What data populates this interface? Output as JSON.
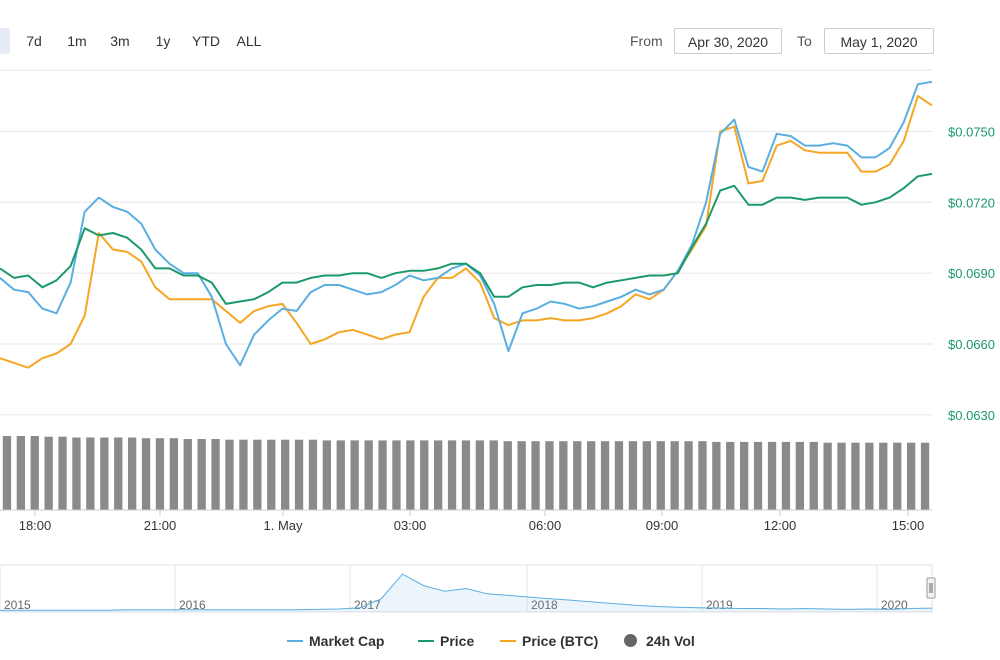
{
  "range_buttons": [
    {
      "label": ""
    },
    {
      "label": "7d"
    },
    {
      "label": "1m"
    },
    {
      "label": "3m"
    },
    {
      "label": "1y"
    },
    {
      "label": "YTD"
    },
    {
      "label": "ALL"
    }
  ],
  "date_range": {
    "from_label": "From",
    "from_value": "Apr 30, 2020",
    "to_label": "To",
    "to_value": "May 1, 2020"
  },
  "colors": {
    "market_cap": "#5aaee0",
    "price": "#1a9a68",
    "price_btc": "#f5a623",
    "volume": "#8a8a8a",
    "grid": "#e6e6e6",
    "axis_label": "#1a9a68"
  },
  "chart_data": {
    "type": "line",
    "y_axis": {
      "ticks": [
        "$0.0750",
        "$0.0720",
        "$0.0690",
        "$0.0660",
        "$0.0630"
      ],
      "range": [
        0.0627,
        0.0776
      ]
    },
    "x_axis": {
      "ticks": [
        "18:00",
        "21:00",
        "1. May",
        "03:00",
        "06:00",
        "09:00",
        "12:00",
        "15:00"
      ]
    },
    "series": [
      {
        "name": "Market Cap",
        "values": [
          0.0688,
          0.0683,
          0.0682,
          0.0675,
          0.0673,
          0.0686,
          0.0716,
          0.0722,
          0.0718,
          0.0716,
          0.0711,
          0.07,
          0.0694,
          0.069,
          0.069,
          0.068,
          0.066,
          0.0651,
          0.0664,
          0.067,
          0.0675,
          0.0674,
          0.0682,
          0.0685,
          0.0685,
          0.0683,
          0.0681,
          0.0682,
          0.0685,
          0.0689,
          0.0687,
          0.0688,
          0.0692,
          0.0694,
          0.0689,
          0.0677,
          0.0657,
          0.0673,
          0.0675,
          0.0678,
          0.0677,
          0.0675,
          0.0676,
          0.0678,
          0.068,
          0.0683,
          0.0681,
          0.0683,
          0.0691,
          0.0702,
          0.072,
          0.0749,
          0.0755,
          0.0735,
          0.0733,
          0.0749,
          0.0748,
          0.0744,
          0.0744,
          0.0745,
          0.0744,
          0.0739,
          0.0739,
          0.0743,
          0.0754,
          0.077,
          0.0771
        ]
      },
      {
        "name": "Price",
        "values": [
          0.0692,
          0.0688,
          0.0689,
          0.0684,
          0.0687,
          0.0693,
          0.0709,
          0.0706,
          0.0707,
          0.0705,
          0.07,
          0.0692,
          0.0692,
          0.0689,
          0.0689,
          0.0686,
          0.0677,
          0.0678,
          0.0679,
          0.0682,
          0.0686,
          0.0686,
          0.0688,
          0.0689,
          0.0689,
          0.069,
          0.069,
          0.0688,
          0.069,
          0.0691,
          0.0691,
          0.0692,
          0.0694,
          0.0694,
          0.069,
          0.068,
          0.068,
          0.0684,
          0.0685,
          0.0685,
          0.0686,
          0.0686,
          0.0684,
          0.0686,
          0.0687,
          0.0688,
          0.0689,
          0.0689,
          0.069,
          0.0701,
          0.0711,
          0.0725,
          0.0727,
          0.0719,
          0.0719,
          0.0722,
          0.0722,
          0.0721,
          0.0722,
          0.0722,
          0.0722,
          0.0719,
          0.072,
          0.0722,
          0.0726,
          0.0731,
          0.0732
        ]
      },
      {
        "name": "Price (BTC)",
        "values": [
          0.0654,
          0.0652,
          0.065,
          0.0654,
          0.0656,
          0.066,
          0.0672,
          0.0707,
          0.07,
          0.0699,
          0.0695,
          0.0684,
          0.0679,
          0.0679,
          0.0679,
          0.0679,
          0.0674,
          0.0669,
          0.0674,
          0.0676,
          0.0677,
          0.0669,
          0.066,
          0.0662,
          0.0665,
          0.0666,
          0.0664,
          0.0662,
          0.0664,
          0.0665,
          0.068,
          0.0688,
          0.0688,
          0.0692,
          0.0686,
          0.0671,
          0.0668,
          0.067,
          0.067,
          0.0671,
          0.067,
          0.067,
          0.0671,
          0.0673,
          0.0676,
          0.0681,
          0.0679,
          0.0683,
          0.0691,
          0.07,
          0.071,
          0.075,
          0.0752,
          0.0728,
          0.0729,
          0.0744,
          0.0746,
          0.0742,
          0.0741,
          0.0741,
          0.0741,
          0.0733,
          0.0733,
          0.0736,
          0.0746,
          0.0765,
          0.0761
        ]
      },
      {
        "name": "24h Vol",
        "values": [
          1.0,
          1.0,
          1.0,
          0.99,
          0.99,
          0.98,
          0.98,
          0.98,
          0.98,
          0.98,
          0.97,
          0.97,
          0.97,
          0.96,
          0.96,
          0.96,
          0.95,
          0.95,
          0.95,
          0.95,
          0.95,
          0.95,
          0.95,
          0.94,
          0.94,
          0.94,
          0.94,
          0.94,
          0.94,
          0.94,
          0.94,
          0.94,
          0.94,
          0.94,
          0.94,
          0.94,
          0.93,
          0.93,
          0.93,
          0.93,
          0.93,
          0.93,
          0.93,
          0.93,
          0.93,
          0.93,
          0.93,
          0.93,
          0.93,
          0.93,
          0.93,
          0.92,
          0.92,
          0.92,
          0.92,
          0.92,
          0.92,
          0.92,
          0.92,
          0.91,
          0.91,
          0.91,
          0.91,
          0.91,
          0.91,
          0.91,
          0.91
        ]
      }
    ],
    "navigator": {
      "ticks": [
        "2015",
        "2016",
        "2017",
        "2018",
        "2019",
        "2020"
      ],
      "values": [
        0.02,
        0.02,
        0.02,
        0.02,
        0.02,
        0.02,
        0.03,
        0.03,
        0.03,
        0.03,
        0.03,
        0.03,
        0.03,
        0.03,
        0.03,
        0.04,
        0.05,
        0.08,
        0.3,
        0.9,
        0.62,
        0.48,
        0.55,
        0.42,
        0.38,
        0.34,
        0.3,
        0.26,
        0.22,
        0.18,
        0.14,
        0.11,
        0.09,
        0.08,
        0.07,
        0.06,
        0.06,
        0.05,
        0.06,
        0.05,
        0.04,
        0.05,
        0.04,
        0.06,
        0.07
      ]
    },
    "legend_placement": "bottom-center"
  }
}
